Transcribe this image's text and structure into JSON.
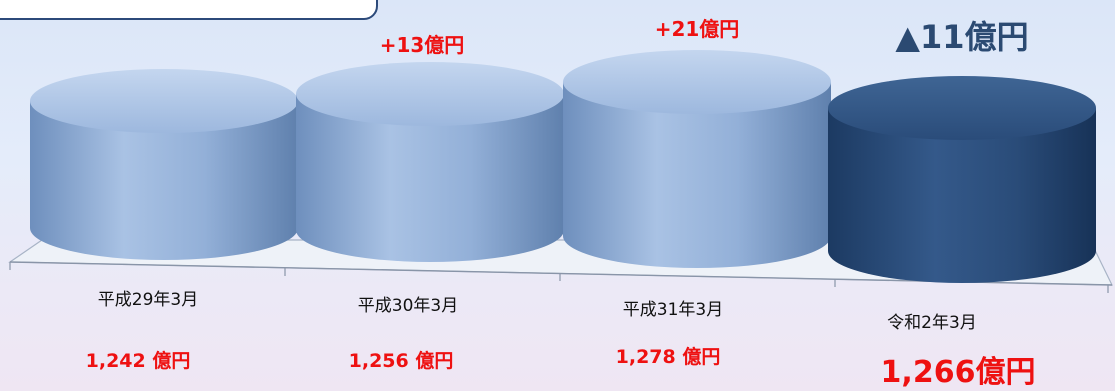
{
  "colors": {
    "cylinder": "#8eabd2",
    "highlight": "#274a77",
    "value_text": "#ee1111",
    "negative_change": "#2b4a72"
  },
  "chart_data": {
    "type": "bar",
    "style": "3d-cylinder",
    "categories": [
      "平成29年3月",
      "平成30年3月",
      "平成31年3月",
      "令和2年3月"
    ],
    "values": [
      1242,
      1256,
      1278,
      1266
    ],
    "value_labels": [
      "1,242 億円",
      "1,256 億円",
      "1,278 億円",
      "1,266億円"
    ],
    "changes": [
      "",
      "+13億円",
      "+21億円",
      "▲11億円"
    ],
    "highlight_index": 3,
    "unit": "億円"
  }
}
